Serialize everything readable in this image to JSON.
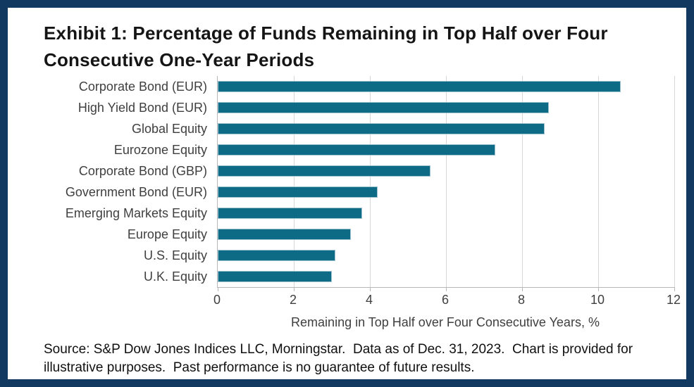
{
  "window": {
    "border_color": "#123a60",
    "background_color": "#ffffff"
  },
  "title": {
    "line1": "Exhibit 1: Percentage of Funds Remaining in Top Half over Four",
    "line2": "Consecutive One-Year Periods"
  },
  "chart_data": {
    "type": "bar",
    "orientation": "horizontal",
    "categories": [
      "Corporate Bond (EUR)",
      "High Yield Bond (EUR)",
      "Global Equity",
      "Eurozone Equity",
      "Corporate Bond (GBP)",
      "Government Bond (EUR)",
      "Emerging Markets Equity",
      "Europe Equity",
      "U.S. Equity",
      "U.K. Equity"
    ],
    "values": [
      10.6,
      8.7,
      8.6,
      7.3,
      5.6,
      4.2,
      3.8,
      3.5,
      3.1,
      3.0
    ],
    "xlabel": "Remaining in Top Half over Four Consecutive Years, %",
    "xticks": [
      0,
      2,
      4,
      6,
      8,
      10,
      12
    ],
    "xlim": [
      0,
      12
    ],
    "grid": true,
    "legend": false,
    "bar_color": "#0e6b86",
    "bar_border_color": "#9ec2d2",
    "gridline_color": "#d6d6d6",
    "axis_line_color": "#b7b7b7",
    "tick_label_color": "#3f3f3f"
  },
  "footer": {
    "source_note": "Source: S&P Dow Jones Indices LLC, Morningstar.  Data as of Dec. 31, 2023.  Chart is provided for\nillustrative purposes.  Past performance is no guarantee of future results."
  }
}
